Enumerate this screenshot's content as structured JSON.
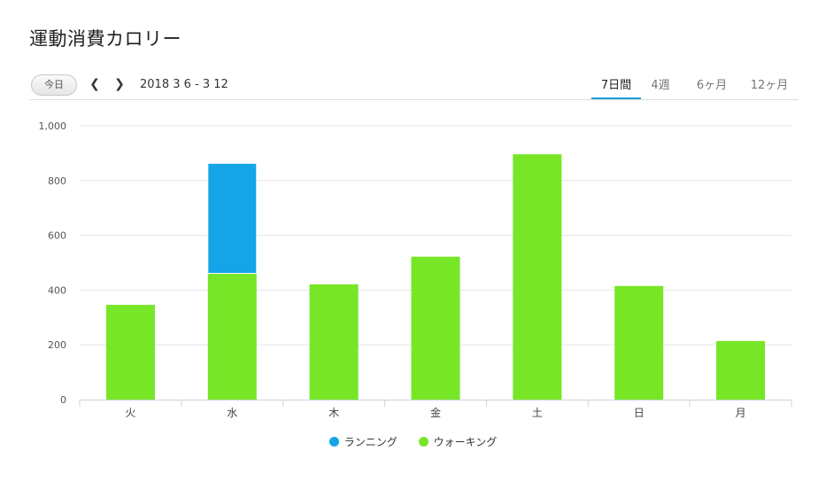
{
  "header": {
    "title": "運動消費カロリー"
  },
  "toolbar": {
    "today_label": "今日",
    "prev_icon": "chevron-left-icon",
    "next_icon": "chevron-right-icon",
    "date_range": "2018 3 6 - 3 12",
    "tabs": [
      {
        "label": "7日間",
        "active": true
      },
      {
        "label": "4週",
        "active": false
      },
      {
        "label": "6ヶ月",
        "active": false
      },
      {
        "label": "12ヶ月",
        "active": false
      }
    ],
    "accent_color": "#1a9fd8"
  },
  "chart_data": {
    "type": "bar",
    "stacked": true,
    "title": "",
    "xlabel": "",
    "ylabel": "",
    "categories": [
      "火",
      "水",
      "木",
      "金",
      "土",
      "日",
      "月"
    ],
    "ylim": [
      0,
      1000
    ],
    "yticks": [
      0,
      200,
      400,
      600,
      800,
      1000
    ],
    "ytick_labels": [
      "0",
      "200",
      "400",
      "600",
      "800",
      "1,000"
    ],
    "grid": true,
    "legend_position": "bottom",
    "series": [
      {
        "name": "ウォーキング",
        "color": "#76e626",
        "values": [
          346,
          461,
          421,
          522,
          896,
          415,
          214
        ]
      },
      {
        "name": "ランニング",
        "color": "#13a5e8",
        "values": [
          0,
          402,
          0,
          0,
          0,
          0,
          0
        ]
      }
    ],
    "legend_order": [
      "ランニング",
      "ウォーキング"
    ]
  }
}
